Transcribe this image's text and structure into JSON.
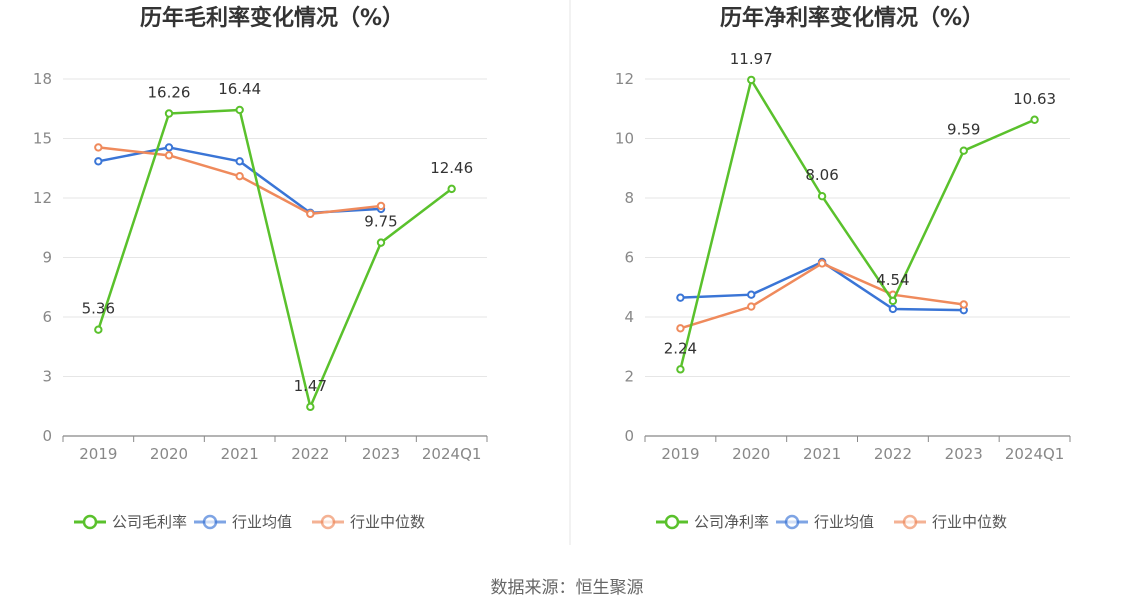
{
  "source": "数据来源：恒生聚源",
  "chart_data": [
    {
      "type": "line",
      "title": "历年毛利率变化情况（%）",
      "categories": [
        "2019",
        "2020",
        "2021",
        "2022",
        "2023",
        "2024Q1"
      ],
      "ylim": [
        0,
        18
      ],
      "yticks": [
        "0",
        "3",
        "6",
        "9",
        "12",
        "15",
        "18"
      ],
      "grid": true,
      "legend_position": "bottom",
      "series": [
        {
          "name": "公司毛利率",
          "color": "#5ac12c",
          "values": [
            5.36,
            16.26,
            16.44,
            1.47,
            9.75,
            12.46
          ],
          "labels": [
            "5.36",
            "16.26",
            "16.44",
            "1.47",
            "9.75",
            "12.46"
          ]
        },
        {
          "name": "行业均值",
          "color": "#3a75d6",
          "values": [
            13.85,
            14.55,
            13.85,
            11.25,
            11.45,
            null
          ]
        },
        {
          "name": "行业中位数",
          "color": "#ef8a5c",
          "values": [
            14.55,
            14.15,
            13.1,
            11.2,
            11.6,
            null
          ]
        }
      ]
    },
    {
      "type": "line",
      "title": "历年净利率变化情况（%）",
      "categories": [
        "2019",
        "2020",
        "2021",
        "2022",
        "2023",
        "2024Q1"
      ],
      "ylim": [
        0,
        12
      ],
      "yticks": [
        "0",
        "2",
        "4",
        "6",
        "8",
        "10",
        "12"
      ],
      "grid": true,
      "legend_position": "bottom",
      "series": [
        {
          "name": "公司净利率",
          "color": "#5ac12c",
          "values": [
            2.24,
            11.97,
            8.06,
            4.54,
            9.59,
            10.63
          ],
          "labels": [
            "2.24",
            "11.97",
            "8.06",
            "4.54",
            "9.59",
            "10.63"
          ]
        },
        {
          "name": "行业均值",
          "color": "#3a75d6",
          "values": [
            4.65,
            4.75,
            5.85,
            4.27,
            4.23,
            null
          ]
        },
        {
          "name": "行业中位数",
          "color": "#ef8a5c",
          "values": [
            3.62,
            4.35,
            5.8,
            4.75,
            4.42,
            null
          ]
        }
      ]
    }
  ]
}
